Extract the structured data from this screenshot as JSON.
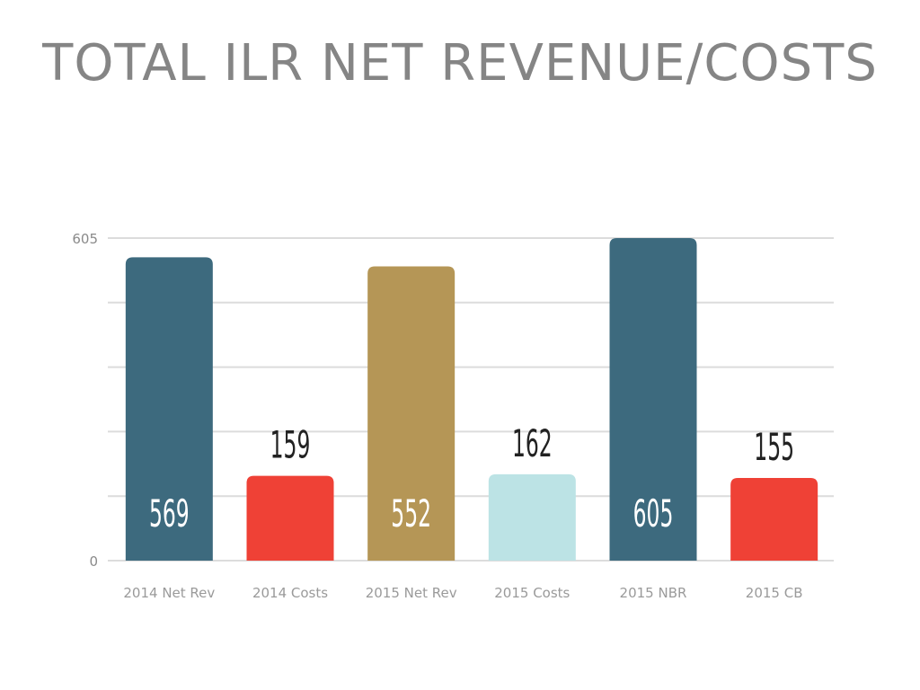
{
  "chart_data": {
    "type": "bar",
    "title": "TOTAL ILR NET REVENUE/COSTS",
    "xlabel": "",
    "ylabel": "",
    "categories": [
      "2014 Net Rev",
      "2014 Costs",
      "2015 Net Rev",
      "2015 Costs",
      "2015 NBR",
      "2015 CB"
    ],
    "values": [
      569,
      159,
      552,
      162,
      605,
      155
    ],
    "colors": [
      "#3d6a7e",
      "#ef4136",
      "#b59656",
      "#bce3e5",
      "#3d6a7e",
      "#ef4136"
    ],
    "label_colors": [
      "#ffffff",
      "#222222",
      "#ffffff",
      "#222222",
      "#ffffff",
      "#222222"
    ],
    "label_inside": [
      true,
      false,
      true,
      false,
      true,
      false
    ],
    "ylim": [
      0,
      605
    ],
    "yticks": [
      "0",
      "605"
    ],
    "grid": true,
    "legend": "none"
  }
}
